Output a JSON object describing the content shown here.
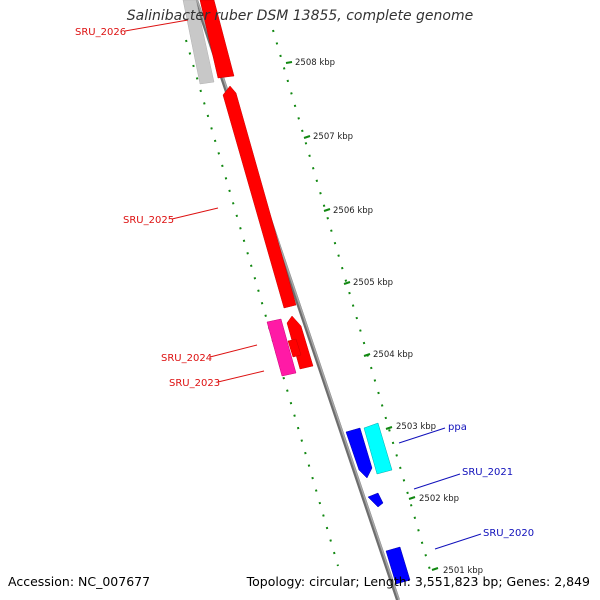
{
  "title": "Salinibacter ruber DSM 13855, complete genome",
  "footer": {
    "accession": "Accession: NC_007677",
    "summary": "Topology: circular; Length: 3,551,823 bp; Genes: 2,849"
  },
  "ruler": [
    {
      "label": "2508 kbp",
      "kbp": 2508
    },
    {
      "label": "2507 kbp",
      "kbp": 2507
    },
    {
      "label": "2506 kbp",
      "kbp": 2506
    },
    {
      "label": "2505 kbp",
      "kbp": 2505
    },
    {
      "label": "2504 kbp",
      "kbp": 2504
    },
    {
      "label": "2503 kbp",
      "kbp": 2503
    },
    {
      "label": "2502 kbp",
      "kbp": 2502
    },
    {
      "label": "2501 kbp",
      "kbp": 2501
    }
  ],
  "genes": [
    {
      "name": "SRU_2026",
      "color": "#dd1111"
    },
    {
      "name": "SRU_2025",
      "color": "#dd1111"
    },
    {
      "name": "SRU_2024",
      "color": "#dd1111"
    },
    {
      "name": "SRU_2023",
      "color": "#dd1111"
    },
    {
      "name": "ppa",
      "color": "#1111bb"
    },
    {
      "name": "SRU_2021",
      "color": "#1111bb"
    },
    {
      "name": "SRU_2020",
      "color": "#1111bb"
    }
  ],
  "colors": {
    "backbone": "#888888",
    "tick": "#118811",
    "forward_gene": "#ff0000",
    "forward_gene_alt": "#ff1aa6",
    "reverse_gene": "#0000ff",
    "reverse_gene_alt": "#00ffff",
    "pseudo_gene": "#c8c8c8"
  }
}
